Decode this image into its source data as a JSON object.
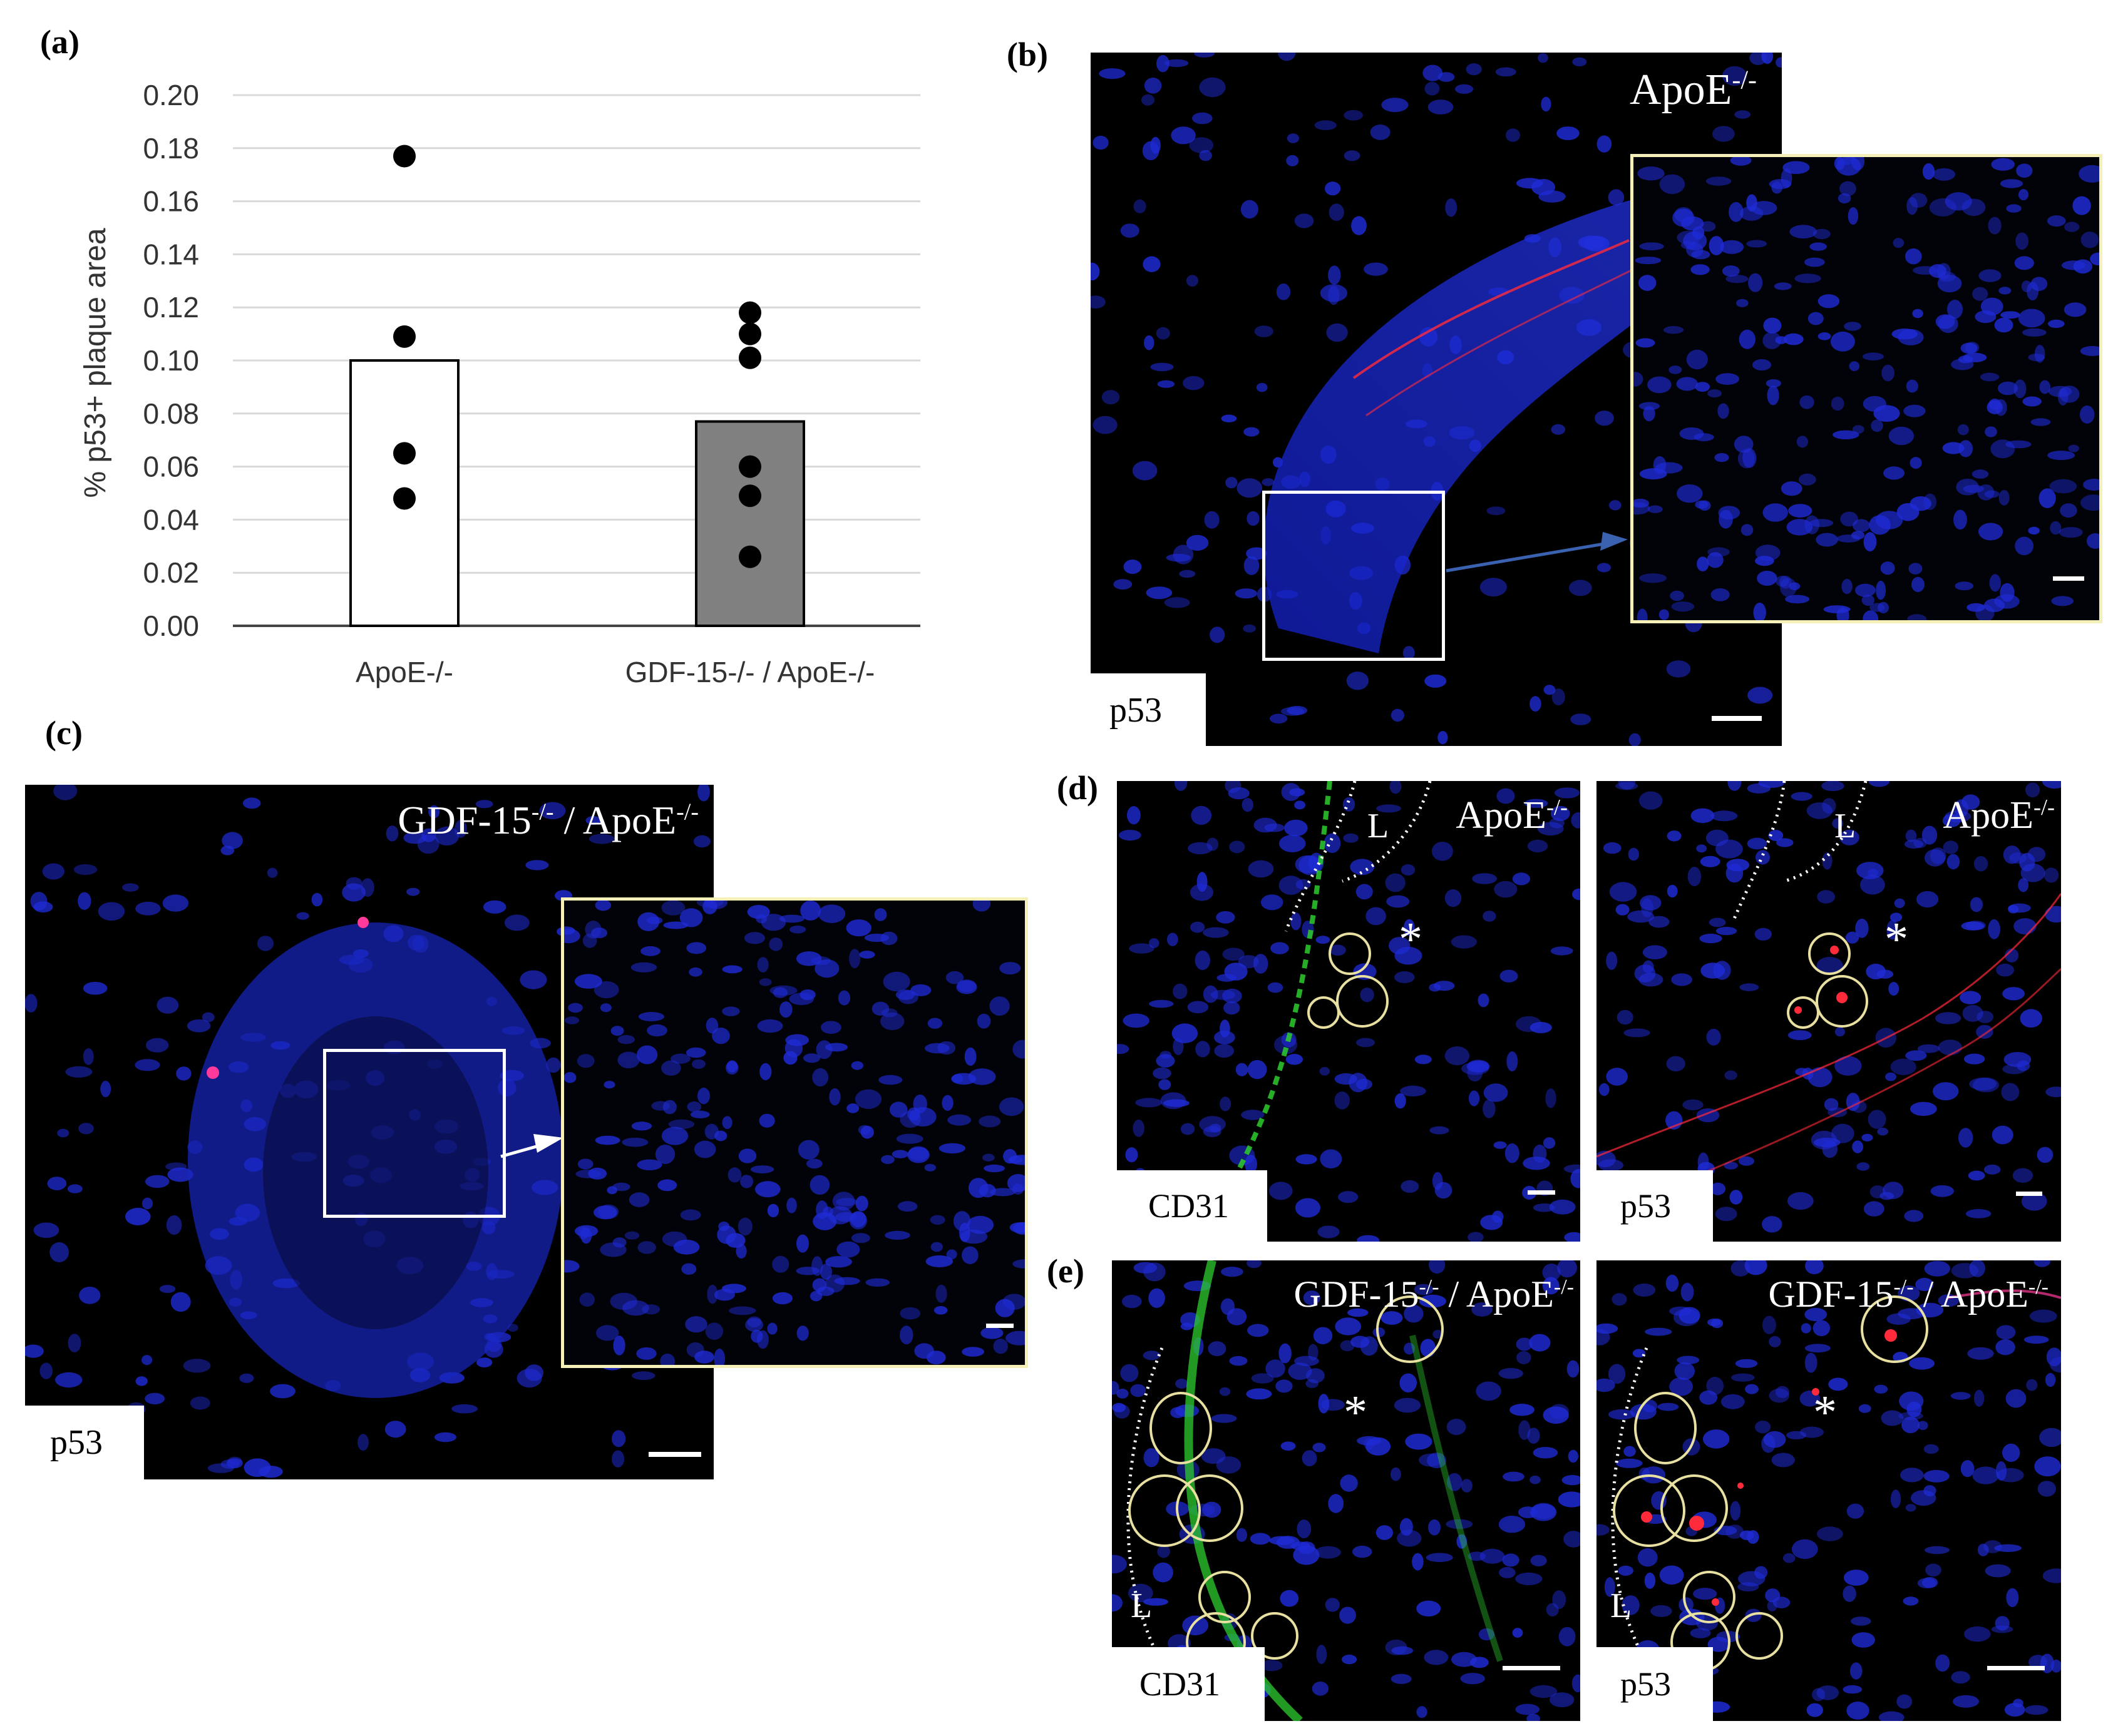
{
  "panels": {
    "a": "(a)",
    "b": "(b)",
    "c": "(c)",
    "d": "(d)",
    "e": "(e)"
  },
  "chart_data": {
    "type": "bar",
    "title": "",
    "xlabel": "",
    "ylabel": "% p53+ plaque area",
    "ylim": [
      0,
      0.2
    ],
    "yticks": [
      "0.00",
      "0.02",
      "0.04",
      "0.06",
      "0.08",
      "0.10",
      "0.12",
      "0.14",
      "0.16",
      "0.18",
      "0.20"
    ],
    "categories": [
      "ApoE-/-",
      "GDF-15-/- / ApoE-/-"
    ],
    "values": [
      0.1,
      0.077
    ],
    "bar_colors": [
      "#ffffff",
      "#808080"
    ],
    "points": [
      [
        0.177,
        0.109,
        0.065,
        0.048
      ],
      [
        0.118,
        0.11,
        0.101,
        0.06,
        0.049,
        0.026
      ]
    ],
    "grid": true
  },
  "images": {
    "b": {
      "genotype_base": "ApoE",
      "genotype_sup": "-/-",
      "stain": "p53"
    },
    "c": {
      "genotype1_base": "GDF-15",
      "genotype1_sup": "-/-",
      "separator": " / ",
      "genotype2_base": "ApoE",
      "genotype2_sup": "-/-",
      "stain": "p53"
    },
    "d_left": {
      "genotype_base": "ApoE",
      "genotype_sup": "-/-",
      "stain": "CD31",
      "lumen": "L",
      "star": "*"
    },
    "d_right": {
      "genotype_base": "ApoE",
      "genotype_sup": "-/-",
      "stain": "p53",
      "lumen": "L",
      "star": "*"
    },
    "e_left": {
      "genotype1_base": "GDF-15",
      "genotype1_sup": "-/-",
      "separator": " / ",
      "genotype2_base": "ApoE",
      "genotype2_sup": "-/-",
      "stain": "CD31",
      "lumen": "L",
      "star": "*"
    },
    "e_right": {
      "genotype1_base": "GDF-15",
      "genotype1_sup": "-/-",
      "separator": " / ",
      "genotype2_base": "ApoE",
      "genotype2_sup": "-/-",
      "stain": "p53",
      "lumen": "L",
      "star": "*"
    }
  },
  "colors": {
    "nuclei": "#1f2bd6",
    "p53": "#ff2a3a",
    "cd31": "#2ecc2e",
    "inset_border": "#f4f0b8",
    "circle": "#e8e0a0"
  }
}
